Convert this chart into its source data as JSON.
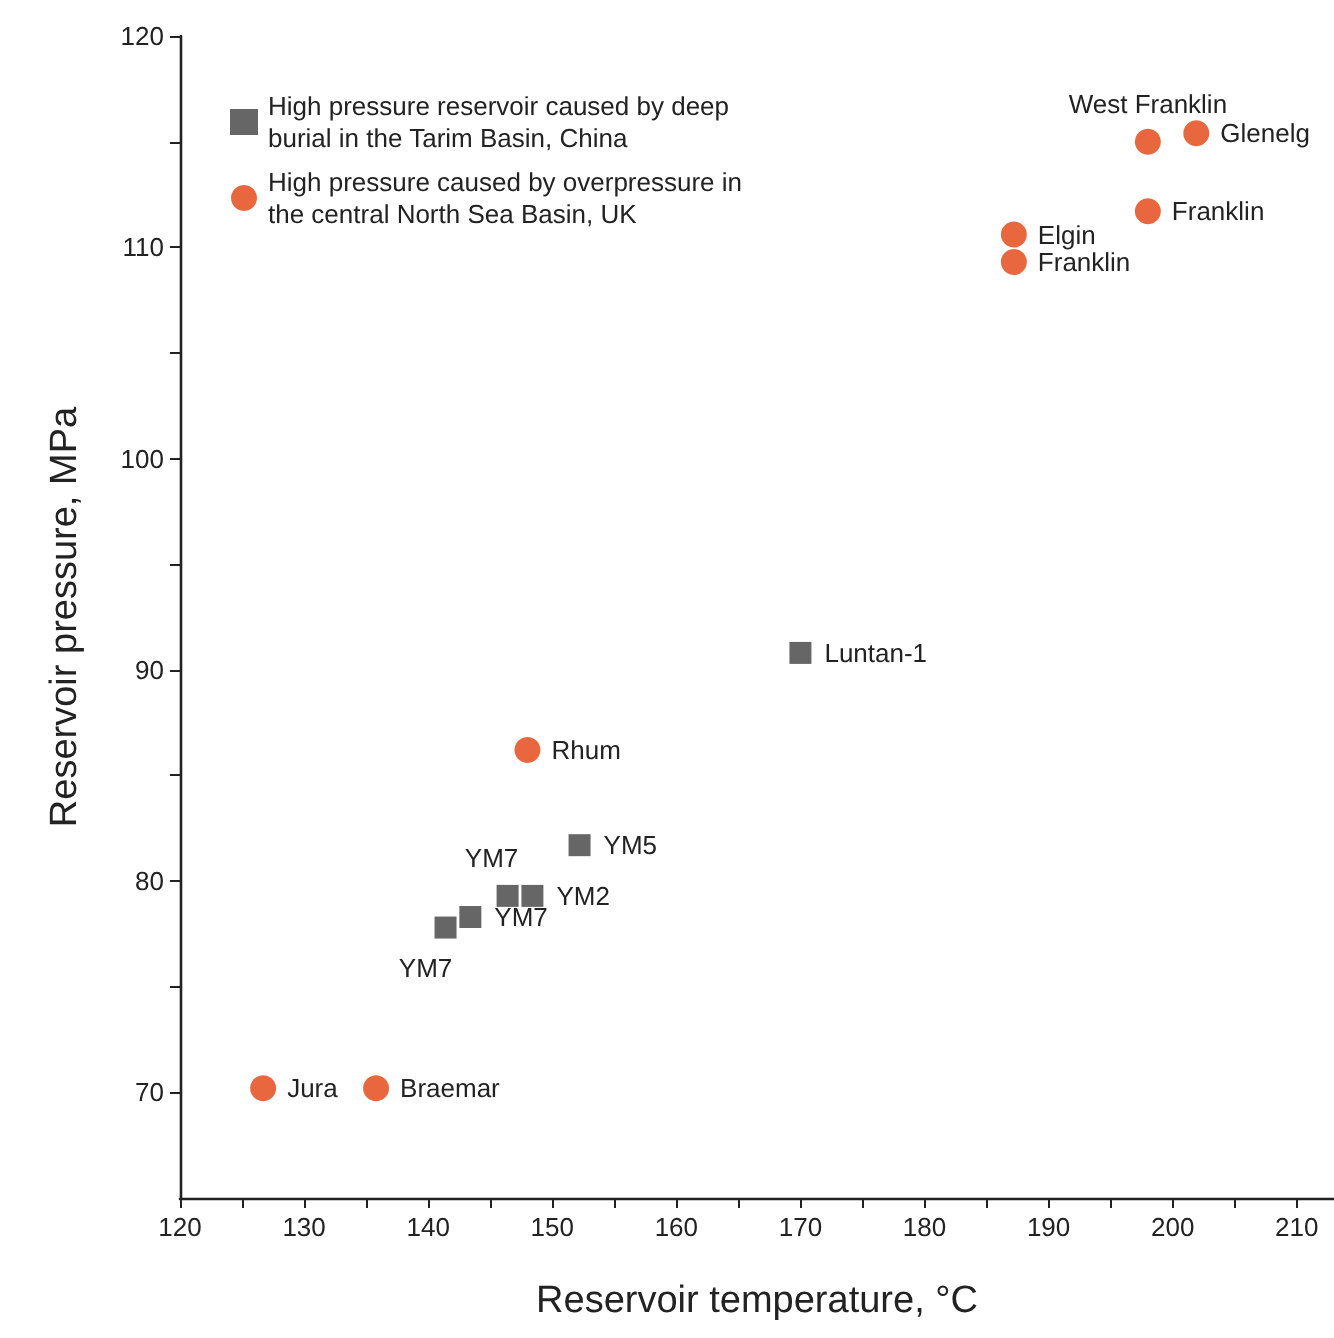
{
  "chart_data": {
    "type": "scatter",
    "xlabel": "Reservoir temperature, °C",
    "ylabel": "Reservoir pressure, MPa",
    "xlim": [
      120,
      213
    ],
    "ylim": [
      65,
      120
    ],
    "xticks": [
      120,
      {
        "value": 125,
        "label": null
      },
      130,
      {
        "value": 135,
        "label": null
      },
      140,
      {
        "value": 145,
        "label": null
      },
      150,
      {
        "value": 155,
        "label": null
      },
      160,
      {
        "value": 165,
        "label": null
      },
      170,
      {
        "value": 175,
        "label": null
      },
      180,
      {
        "value": 185,
        "label": null
      },
      190,
      {
        "value": 195,
        "label": null
      },
      200,
      {
        "value": 205,
        "label": null
      },
      210
    ],
    "yticks": [
      70,
      {
        "value": 75,
        "label": null
      },
      80,
      {
        "value": 85,
        "label": null
      },
      90,
      {
        "value": 95,
        "label": null
      },
      100,
      {
        "value": 105,
        "label": null
      },
      110,
      {
        "value": 115,
        "label": null
      },
      120
    ],
    "grid": false,
    "legend": "top left",
    "series": [
      {
        "name": "High pressure reservoir caused by deep burial in the Tarim Basin, China",
        "color": "#666666",
        "marker": "square",
        "x": [
          141.4,
          143.4,
          146.4,
          148.4,
          152.2,
          170
        ],
        "values": [
          77.8,
          78.3,
          79.3,
          79.3,
          81.7,
          90.8
        ]
      },
      {
        "name": "High pressure caused by overpressure in the central North Sea Basin, UK",
        "color": "#e8673e",
        "marker": "circle",
        "x": [
          126.7,
          135.8,
          148,
          187.2,
          187.2,
          198,
          198,
          201.9
        ],
        "values": [
          70.2,
          70.2,
          86.2,
          110.6,
          109.3,
          111.7,
          115,
          115.4
        ]
      }
    ],
    "annotations": [
      {
        "text": "Jura",
        "x": 126.7,
        "y": 70.2
      },
      {
        "text": "Braemar",
        "x": 135.8,
        "y": 70.2
      },
      {
        "text": "Rhum",
        "x": 148,
        "y": 86.2
      },
      {
        "text": "Elgin",
        "x": 187.2,
        "y": 110.6
      },
      {
        "text": "Franklin",
        "x": 187.2,
        "y": 109.3
      },
      {
        "text": "Franklin",
        "x": 198,
        "y": 111.7
      },
      {
        "text": "West Franklin",
        "x": 198,
        "y": 115
      },
      {
        "text": "Glenelg",
        "x": 201.9,
        "y": 115.4
      },
      {
        "text": "YM7",
        "x": 141.4,
        "y": 77.8
      },
      {
        "text": "YM7",
        "x": 143.4,
        "y": 78.3
      },
      {
        "text": "YM7",
        "x": 146.4,
        "y": 79.3
      },
      {
        "text": "YM2",
        "x": 148.4,
        "y": 79.3
      },
      {
        "text": "YM5",
        "x": 152.2,
        "y": 81.7
      },
      {
        "text": "Luntan-1",
        "x": 170,
        "y": 90.8
      }
    ]
  }
}
